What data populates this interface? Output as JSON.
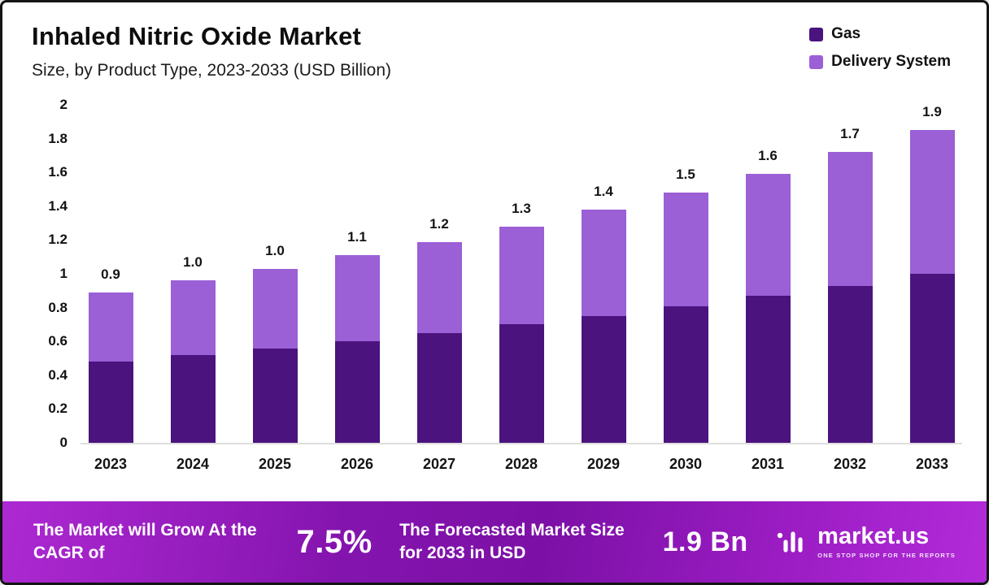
{
  "header": {
    "title": "Inhaled Nitric Oxide Market",
    "subtitle": "Size, by Product Type, 2023-2033 (USD Billion)"
  },
  "legend": [
    {
      "label": "Gas",
      "color": "#4a137e"
    },
    {
      "label": "Delivery System",
      "color": "#9b5fd6"
    }
  ],
  "chart_data": {
    "type": "bar",
    "stacked": true,
    "title": "Inhaled Nitric Oxide Market",
    "subtitle": "Size, by Product Type, 2023-2033 (USD Billion)",
    "categories": [
      "2023",
      "2024",
      "2025",
      "2026",
      "2027",
      "2028",
      "2029",
      "2030",
      "2031",
      "2032",
      "2033"
    ],
    "series": [
      {
        "name": "Gas",
        "color": "#4a137e",
        "values": [
          0.48,
          0.52,
          0.56,
          0.6,
          0.65,
          0.7,
          0.75,
          0.81,
          0.87,
          0.93,
          1.0
        ]
      },
      {
        "name": "Delivery System",
        "color": "#9b5fd6",
        "values": [
          0.41,
          0.44,
          0.47,
          0.51,
          0.54,
          0.58,
          0.63,
          0.67,
          0.72,
          0.79,
          0.85
        ]
      }
    ],
    "totals_labels": [
      "0.9",
      "1.0",
      "1.0",
      "1.1",
      "1.2",
      "1.3",
      "1.4",
      "1.5",
      "1.6",
      "1.7",
      "1.9"
    ],
    "xlabel": "",
    "ylabel": "",
    "ylim": [
      0,
      2
    ],
    "yticks": [
      0,
      0.2,
      0.4,
      0.6,
      0.8,
      1,
      1.2,
      1.4,
      1.6,
      1.8,
      2
    ],
    "ytick_labels": [
      "0",
      "0.2",
      "0.4",
      "0.6",
      "0.8",
      "1",
      "1.2",
      "1.4",
      "1.6",
      "1.8",
      "2"
    ],
    "grid": false,
    "legend_position": "top-right"
  },
  "footer": {
    "cagr_text": "The Market will Grow At the CAGR of",
    "cagr_value": "7.5%",
    "forecast_text": "The Forecasted Market Size for 2033 in USD",
    "forecast_value": "1.9 Bn",
    "brand": "market.us",
    "brand_tagline": "ONE STOP SHOP FOR THE REPORTS"
  }
}
